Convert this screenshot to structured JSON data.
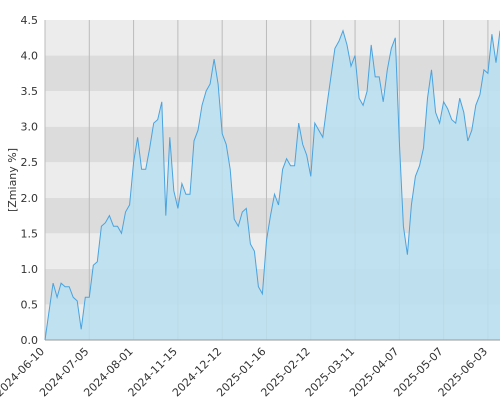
{
  "chart_data": {
    "type": "area",
    "ylabel": "[Zmiany %]",
    "categories": [
      "2024-06-10",
      null,
      null,
      null,
      null,
      null,
      null,
      null,
      null,
      null,
      null,
      "2024-07-05",
      null,
      null,
      null,
      null,
      null,
      null,
      null,
      null,
      null,
      null,
      "2024-08-01",
      null,
      null,
      null,
      null,
      null,
      null,
      null,
      null,
      null,
      null,
      "2024-11-15",
      null,
      null,
      null,
      null,
      null,
      null,
      null,
      null,
      null,
      null,
      "2024-12-12",
      null,
      null,
      null,
      null,
      null,
      null,
      null,
      null,
      null,
      null,
      "2025-01-16",
      null,
      null,
      null,
      null,
      null,
      null,
      null,
      null,
      null,
      null,
      "2025-02-12",
      null,
      null,
      null,
      null,
      null,
      null,
      null,
      null,
      null,
      null,
      "2025-03-11",
      null,
      null,
      null,
      null,
      null,
      null,
      null,
      null,
      null,
      null,
      "2025-04-07",
      null,
      null,
      null,
      null,
      null,
      null,
      null,
      null,
      null,
      null,
      "2025-05-07",
      null,
      null,
      null,
      null,
      null,
      null,
      null,
      null,
      null,
      null,
      "2025-06-03",
      null,
      null,
      null
    ],
    "values": [
      0.0,
      0.4,
      0.8,
      0.6,
      0.8,
      0.75,
      0.75,
      0.6,
      0.55,
      0.15,
      0.6,
      0.6,
      1.05,
      1.1,
      1.6,
      1.65,
      1.75,
      1.6,
      1.6,
      1.5,
      1.8,
      1.9,
      2.5,
      2.85,
      2.4,
      2.4,
      2.7,
      3.05,
      3.1,
      3.35,
      1.75,
      2.85,
      2.1,
      1.85,
      2.2,
      2.05,
      2.05,
      2.8,
      2.95,
      3.3,
      3.5,
      3.6,
      3.95,
      3.6,
      2.9,
      2.75,
      2.4,
      1.7,
      1.6,
      1.8,
      1.85,
      1.35,
      1.25,
      0.75,
      0.65,
      1.4,
      1.75,
      2.05,
      1.9,
      2.4,
      2.55,
      2.45,
      2.45,
      3.05,
      2.75,
      2.6,
      2.3,
      3.05,
      2.95,
      2.85,
      3.3,
      3.7,
      4.1,
      4.2,
      4.35,
      4.15,
      3.85,
      4.0,
      3.4,
      3.3,
      3.5,
      4.15,
      3.7,
      3.7,
      3.35,
      3.8,
      4.1,
      4.25,
      2.8,
      1.6,
      1.2,
      1.9,
      2.3,
      2.45,
      2.7,
      3.4,
      3.8,
      3.2,
      3.05,
      3.35,
      3.25,
      3.1,
      3.05,
      3.4,
      3.2,
      2.8,
      2.95,
      3.3,
      3.45,
      3.8,
      3.75,
      4.3,
      3.9,
      4.35
    ],
    "color": "#4aa3df",
    "fill_color": "#b8dff0",
    "ylim": [
      0,
      4.5
    ],
    "yticks": [
      {
        "value": 0,
        "label": "0.0"
      },
      0.5,
      {
        "value": 1,
        "label": "1.0"
      },
      1.5,
      {
        "value": 2,
        "label": "2.0"
      },
      2.5,
      {
        "value": 3,
        "label": "3.0"
      },
      3.5,
      {
        "value": 4,
        "label": "4.0"
      },
      4.5
    ],
    "grid": true
  }
}
